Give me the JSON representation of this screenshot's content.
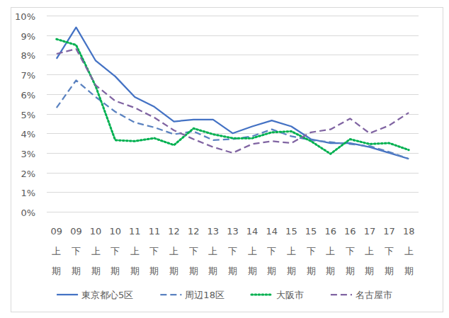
{
  "chart_data": {
    "type": "line",
    "categories": [
      "09上期",
      "09下期",
      "10上期",
      "10下期",
      "11上期",
      "11下期",
      "12上期",
      "12下期",
      "13上期",
      "13下期",
      "14上期",
      "14下期",
      "15上期",
      "15下期",
      "16上期",
      "16下期",
      "17上期",
      "17下期",
      "18上期"
    ],
    "series": [
      {
        "name": "東京都心5区",
        "color": "#4472c4",
        "line_style": "solid",
        "values": [
          7.8,
          9.4,
          7.7,
          6.9,
          5.85,
          5.35,
          4.6,
          4.7,
          4.7,
          4.0,
          4.35,
          4.65,
          4.35,
          3.7,
          3.5,
          3.5,
          3.3,
          3.0,
          2.7
        ]
      },
      {
        "name": "周辺18区",
        "color": "#5a82c0",
        "line_style": "dashed",
        "values": [
          5.3,
          6.7,
          5.85,
          5.1,
          4.55,
          4.3,
          3.95,
          4.1,
          3.65,
          3.7,
          3.85,
          4.2,
          3.85,
          3.65,
          3.55,
          3.45,
          3.35,
          3.05,
          2.7
        ]
      },
      {
        "name": "大阪市",
        "color": "#00b050",
        "line_style": "dotted",
        "values": [
          8.8,
          8.5,
          6.4,
          3.65,
          3.6,
          3.75,
          3.4,
          4.25,
          3.95,
          3.75,
          3.75,
          4.05,
          4.1,
          3.6,
          2.95,
          3.7,
          3.45,
          3.5,
          3.15
        ]
      },
      {
        "name": "名古屋市",
        "color": "#8064a2",
        "line_style": "dashed",
        "values": [
          8.05,
          8.3,
          6.45,
          5.65,
          5.3,
          4.8,
          4.15,
          3.7,
          3.3,
          3.0,
          3.45,
          3.6,
          3.5,
          4.05,
          4.2,
          4.75,
          4.0,
          4.4,
          5.05
        ]
      }
    ],
    "ylim": [
      0,
      10
    ],
    "yticks": [
      {
        "value": 0,
        "label": "0%"
      },
      {
        "value": 1,
        "label": "1%"
      },
      {
        "value": 2,
        "label": "2%"
      },
      {
        "value": 3,
        "label": "3%"
      },
      {
        "value": 4,
        "label": "4%"
      },
      {
        "value": 5,
        "label": "5%"
      },
      {
        "value": 6,
        "label": "6%"
      },
      {
        "value": 7,
        "label": "7%"
      },
      {
        "value": 8,
        "label": "8%"
      },
      {
        "value": 9,
        "label": "9%"
      },
      {
        "value": 10,
        "label": "10%"
      }
    ],
    "grid": true,
    "legend": "bottom"
  }
}
